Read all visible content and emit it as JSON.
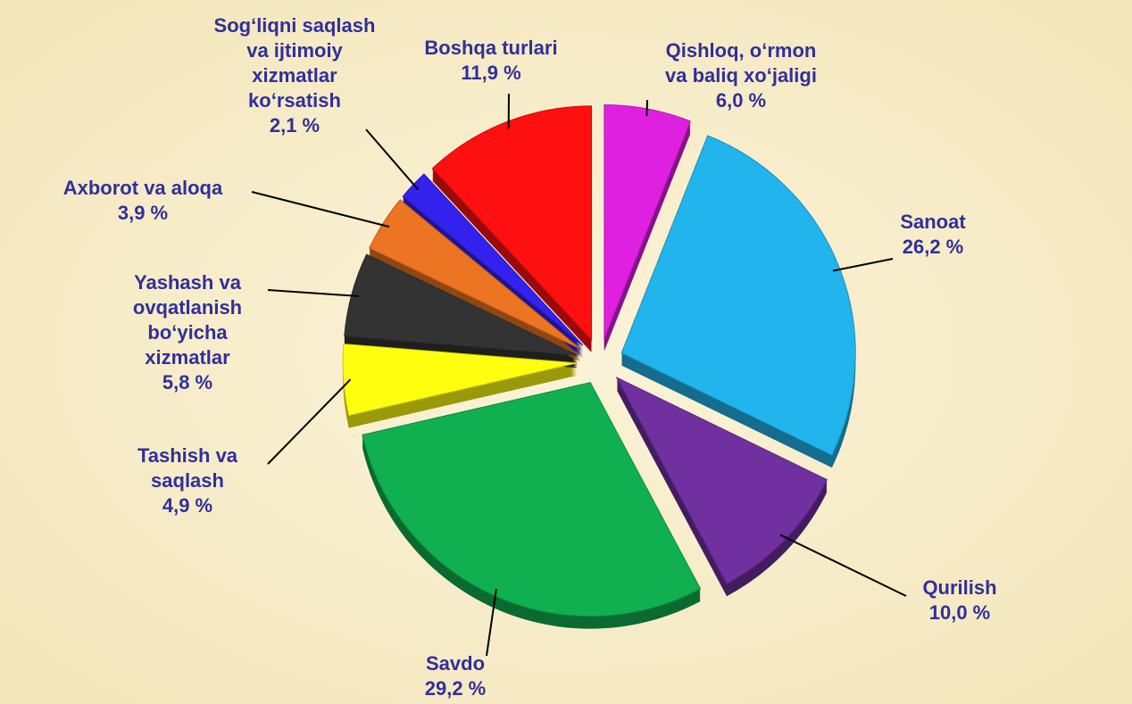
{
  "chart_data": {
    "type": "pie",
    "categories": [
      "Qishloq, o‘rmon\nva baliq xo‘jaligi",
      "Sanoat",
      "Qurilish",
      "Savdo",
      "Tashish va\nsaqlash",
      "Yashash va\novqatlanish\nbo‘yicha\nxizmatlar",
      "Axborot va aloqa",
      "Sog‘liqni saqlash\nva ijtimoiy\nxizmatlar\nko‘rsatish",
      "Boshqa turlari"
    ],
    "values": [
      6.0,
      26.2,
      10.0,
      29.2,
      4.9,
      5.8,
      3.9,
      2.1,
      11.9
    ],
    "value_labels": [
      "6,0 %",
      "26,2 %",
      "10,0 %",
      "29,2 %",
      "4,9 %",
      "5,8 %",
      "3,9 %",
      "2,1 %",
      "11,9 %"
    ],
    "colors": [
      "#e020e0",
      "#22b4ec",
      "#7030a0",
      "#10b050",
      "#ffff10",
      "#333333",
      "#ec7422",
      "#3322ee",
      "#ff1010"
    ]
  }
}
